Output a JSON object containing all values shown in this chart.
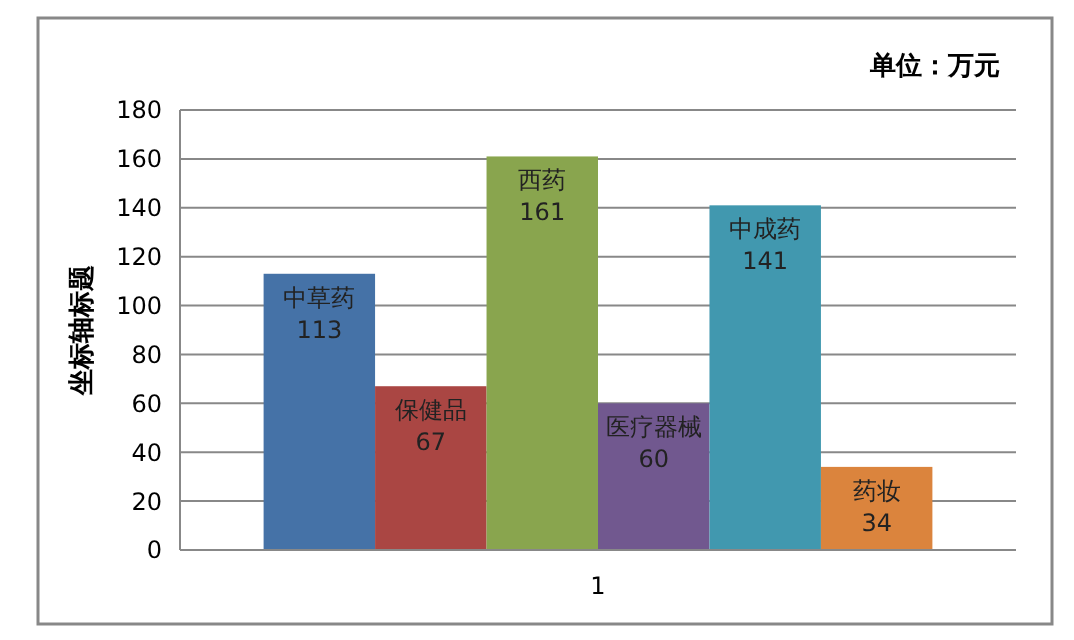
{
  "chart_data": {
    "type": "bar",
    "ylabel": "坐标轴标题",
    "annotations": [
      "单位：万元"
    ],
    "categories": [
      "1"
    ],
    "series": [
      {
        "name": "中草药",
        "color": "#4572a7",
        "values": [
          113
        ]
      },
      {
        "name": "保健品",
        "color": "#aa4643",
        "values": [
          67
        ]
      },
      {
        "name": "西药",
        "color": "#89a54e",
        "values": [
          161
        ]
      },
      {
        "name": "医疗器械",
        "color": "#71588f",
        "values": [
          60
        ]
      },
      {
        "name": "中成药",
        "color": "#4198af",
        "values": [
          141
        ]
      },
      {
        "name": "药妆",
        "color": "#db843d",
        "values": [
          34
        ]
      }
    ],
    "ylim": [
      0,
      180
    ],
    "yticks": [
      0,
      20,
      40,
      60,
      80,
      100,
      120,
      140,
      160,
      180
    ],
    "grid": "y",
    "data_labels": true
  }
}
